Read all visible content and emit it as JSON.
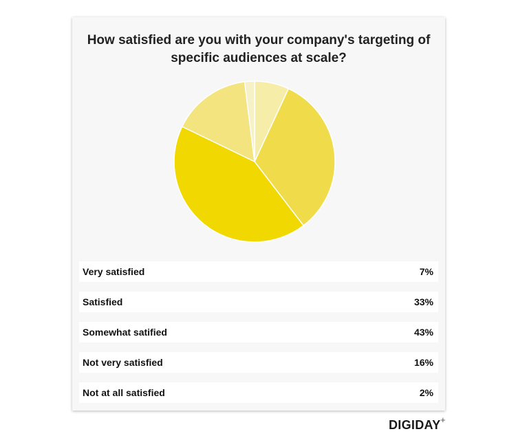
{
  "chart_data": {
    "type": "pie",
    "title": "How satisfied are you with your company's targeting of specific audiences at scale?",
    "categories": [
      "Very satisfied",
      "Satisfied",
      "Somewhat satified",
      "Not very satisfied",
      "Not at all satisfied"
    ],
    "values": [
      7,
      33,
      43,
      16,
      2
    ],
    "value_labels": [
      "7%",
      "33%",
      "43%",
      "16%",
      "2%"
    ],
    "colors": [
      "#f6eda9",
      "#f0dc4a",
      "#f0d800",
      "#f3e480",
      "#f7f1c8"
    ]
  },
  "branding": {
    "logo_text": "DIGIDAY",
    "logo_suffix": "+"
  }
}
